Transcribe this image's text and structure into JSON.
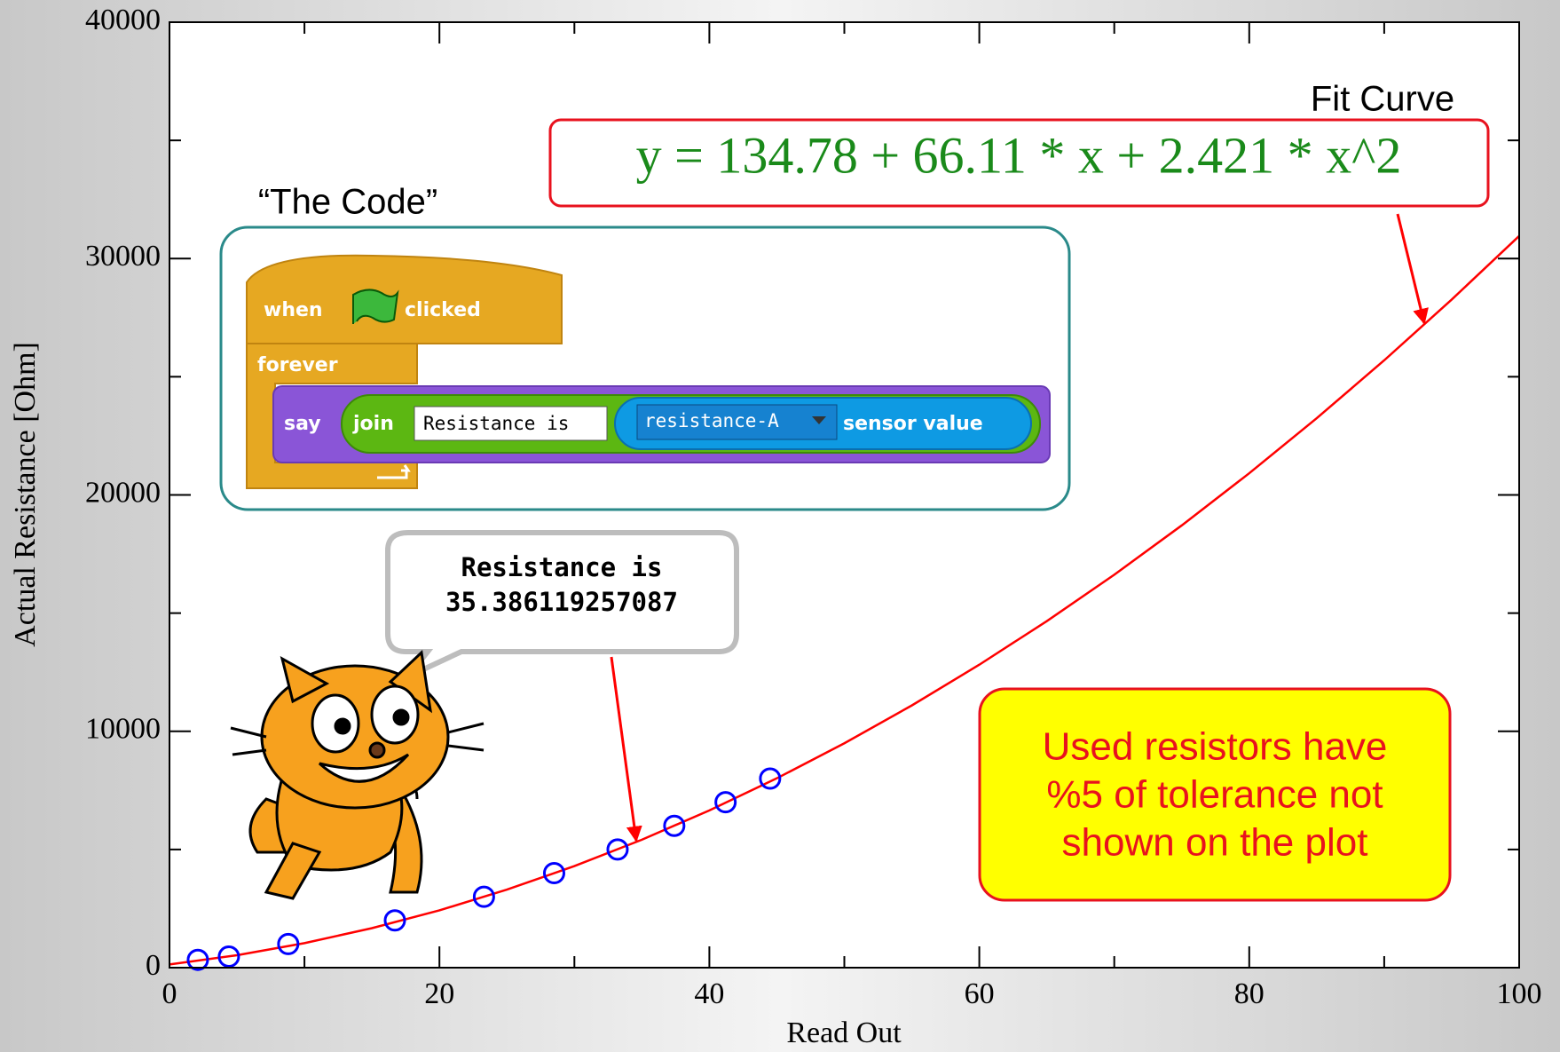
{
  "chart_data": {
    "type": "scatter",
    "x_label": "Read Out",
    "y_label": "Actual Resistance [Ohm]",
    "xlim": [
      0,
      100
    ],
    "xticks": [
      0,
      20,
      40,
      60,
      80,
      100
    ],
    "xminorticks": [
      10,
      30,
      50,
      70,
      90
    ],
    "ylim": [
      0,
      40000
    ],
    "yticks": [
      0,
      10000,
      20000,
      30000,
      40000
    ],
    "yminorticks": [
      5000,
      15000,
      25000,
      35000
    ],
    "series": [
      {
        "type": "scatter",
        "color": "#0000ff",
        "x": [
          2.1,
          4.4,
          8.8,
          16.7,
          23.3,
          28.5,
          33.2,
          37.4,
          41.2,
          44.5
        ],
        "values": [
          330,
          470,
          1000,
          2000,
          3000,
          4000,
          5000,
          6000,
          7000,
          8000
        ]
      },
      {
        "type": "line",
        "color": "#ff0000",
        "x": [
          0,
          5,
          10,
          15,
          20,
          25,
          30,
          35,
          40,
          45,
          50,
          55,
          60,
          65,
          70,
          75,
          80,
          85,
          90,
          95,
          100
        ],
        "values": [
          135,
          526,
          1038,
          1671,
          2425,
          3301,
          4297,
          5414,
          6653,
          8012,
          9493,
          11094,
          12817,
          14661,
          16625,
          18711,
          20918,
          23246,
          25695,
          28265,
          30956
        ]
      }
    ],
    "annotations": {
      "fit_label": "Fit Curve",
      "equation": "y = 134.78 + 66.11 * x + 2.421 * x^2",
      "code_label": "“The Code”",
      "speech": [
        "Resistance is",
        "35.386119257087"
      ],
      "note": [
        "Used resistors have",
        "%5 of tolerance not",
        "shown on the plot"
      ]
    },
    "code_blocks": {
      "when": "when",
      "clicked": "clicked",
      "forever": "forever",
      "say": "say",
      "join": "join",
      "text_input": "Resistance is",
      "sensor": "resistance-A",
      "sensor_value": "sensor value"
    }
  }
}
